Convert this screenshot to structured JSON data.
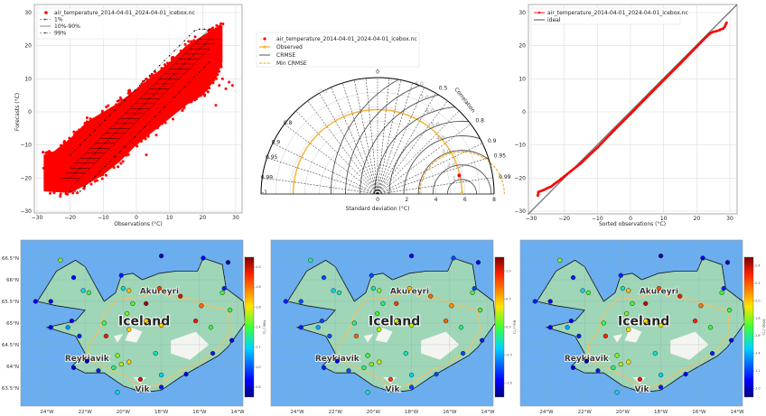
{
  "chart_data": [
    {
      "type": "scatter",
      "title": "",
      "xlabel": "Observations (°C)",
      "ylabel": "Forecasts (°C)",
      "xlim": [
        -31,
        32
      ],
      "ylim": [
        -31,
        32
      ],
      "xticks": [
        -30,
        -20,
        -10,
        0,
        10,
        20,
        30
      ],
      "yticks": [
        -30,
        -20,
        -10,
        0,
        10,
        20,
        30
      ],
      "grid": true,
      "legend_position": "top-left",
      "legend": [
        "air_temperature_2014-04-01_2024-04-01_icebox.nc",
        "1%",
        "10%-90%",
        "99%"
      ],
      "series_color": "#ff0000",
      "point_cloud_upper_edge": [
        [
          -28,
          -13
        ],
        [
          -25,
          -12
        ],
        [
          -20,
          -8
        ],
        [
          -15,
          -3
        ],
        [
          -10,
          0
        ],
        [
          -5,
          3
        ],
        [
          0,
          7
        ],
        [
          5,
          11
        ],
        [
          10,
          15
        ],
        [
          15,
          20
        ],
        [
          20,
          23
        ],
        [
          23,
          25
        ],
        [
          26,
          26
        ]
      ],
      "point_cloud_lower_edge": [
        [
          -28,
          -24
        ],
        [
          -20,
          -24.5
        ],
        [
          -15,
          -22
        ],
        [
          -10,
          -19
        ],
        [
          -5,
          -15
        ],
        [
          0,
          -10
        ],
        [
          5,
          -6
        ],
        [
          10,
          -2
        ],
        [
          15,
          2
        ],
        [
          20,
          5
        ],
        [
          24,
          10
        ],
        [
          26,
          15
        ]
      ],
      "outliers": [
        [
          25,
          8
        ],
        [
          26,
          10
        ],
        [
          27,
          7
        ],
        [
          28,
          9
        ],
        [
          29,
          8
        ],
        [
          24,
          2
        ],
        [
          -23,
          -25.5
        ],
        [
          -27,
          -13
        ],
        [
          -28,
          -17
        ],
        [
          6,
          -7
        ],
        [
          3,
          -13
        ]
      ],
      "quantile_bins_x": [
        -20,
        -18.5,
        -17,
        -15.5,
        -14,
        -12.5,
        -11,
        -9.5,
        -8,
        -6.5,
        -5,
        -3.5,
        -2,
        -0.5,
        1,
        2.5,
        4,
        5.5,
        7,
        8.5,
        10,
        11.5,
        13,
        14.5,
        16,
        17.5,
        19,
        20.5,
        22
      ],
      "q01_offset": -7,
      "q10_offset": -3,
      "q50_offset": 0,
      "q90_offset": 3,
      "q99_offset": 7
    },
    {
      "type": "taylor",
      "xlabel": "Standard deviation (°C)",
      "std_ticks": [
        0,
        2,
        4,
        6,
        8
      ],
      "std_max": 8,
      "correlation_label": "Correlation",
      "correlation_ticks": [
        "0",
        "0.5",
        "0.8",
        "0.9",
        "0.95",
        "0.99",
        "1"
      ],
      "correlation_values": [
        0,
        0.5,
        0.8,
        0.9,
        0.95,
        0.99,
        1
      ],
      "neg_correlation_values": [
        -0.5,
        -0.8,
        -0.9,
        -0.95,
        -0.99,
        -1
      ],
      "neg_correlation_ticks": [
        "0.5",
        "0.8",
        "0.9",
        "0.95",
        "0.99",
        "-1"
      ],
      "crmse_labels": [
        "1.0",
        "2.0",
        "3.0",
        "4.0",
        "5.0",
        "6.0",
        "7.0",
        "8.0",
        "9.0"
      ],
      "crmse_values": [
        1,
        2,
        3,
        4,
        5,
        6,
        7,
        8,
        9
      ],
      "observed_std": 5.8,
      "model_point": {
        "std": 5.75,
        "corr": 0.975
      },
      "min_crmse": 2.9,
      "legend": [
        "air_temperature_2014-04-01_2024-04-01_icebox.nc",
        "Observed",
        "CRMSE",
        "Min CRMSE"
      ],
      "colors": {
        "model": "#ff0000",
        "observed": "#f5b942",
        "crmse": "#555555",
        "min_crmse": "#f5a000"
      }
    },
    {
      "type": "line",
      "xlabel": "Sorted observations (°C)",
      "ylabel": "",
      "xlim": [
        -31,
        32
      ],
      "ylim": [
        -31,
        32
      ],
      "xticks": [
        -30,
        -20,
        -10,
        0,
        10,
        20,
        30
      ],
      "yticks": [
        -30,
        -20,
        -10,
        0,
        10,
        20,
        30
      ],
      "grid": true,
      "legend_position": "top-left",
      "legend": [
        "air_temperature_2014-04-01_2024-04-01_icebox.nc",
        "ideal"
      ],
      "series": [
        {
          "name": "air_temperature_2014-04-01_2024-04-01_icebox.nc",
          "color": "#ff0000",
          "x": [
            -28,
            -27.8,
            -27,
            -26,
            -25,
            -24,
            -23,
            -22,
            -21,
            -20,
            -18,
            -15,
            -10,
            -5,
            0,
            5,
            10,
            15,
            20,
            22,
            23,
            24,
            25,
            26,
            27,
            28,
            28.5,
            29
          ],
          "y": [
            -25.3,
            -24.2,
            -23.9,
            -23.5,
            -23,
            -22.6,
            -21.8,
            -21.1,
            -20.3,
            -19.5,
            -17.9,
            -15.5,
            -10.8,
            -5.6,
            -0.6,
            4.5,
            9.6,
            14.6,
            19.7,
            21.8,
            22.8,
            23.7,
            24.2,
            24.4,
            24.8,
            25.2,
            25.8,
            27
          ]
        },
        {
          "name": "ideal",
          "color": "#777777",
          "x": [
            -31,
            32
          ],
          "y": [
            -31,
            32
          ]
        }
      ]
    },
    {
      "type": "map",
      "colorbar_label": "MAE (°C)",
      "colorbar_ticks": [
        "0.8",
        "1.0",
        "1.2",
        "1.4",
        "1.6",
        "1.8",
        "2.0"
      ],
      "values": [
        0.55,
        0.12,
        0.35,
        0.5,
        0.12,
        0.12,
        0.12,
        0.12,
        0.28,
        0.15,
        0.5,
        0.15,
        0.38,
        0.7,
        0.5,
        0.55,
        0.85,
        0.97,
        0.92,
        0.8,
        0.9,
        0.5,
        0.05,
        0.12,
        0.05,
        0.15,
        0.5,
        0.12,
        0.5,
        0.12,
        0.15,
        0.68,
        0.68,
        0.68,
        0.9,
        0.55,
        0.4,
        0.68,
        0.58,
        0.45,
        0.08,
        0.05,
        0.15,
        0.92,
        0.35,
        0.12,
        0.15,
        0.35
      ]
    },
    {
      "type": "map",
      "colorbar_label": "Bias (°C)",
      "colorbar_ticks": [
        "-1.0",
        "-0.5",
        "0.0",
        "0.5",
        "1.0"
      ],
      "values": [
        0.45,
        0.2,
        0.35,
        0.4,
        0.15,
        0.2,
        0.2,
        0.15,
        0.3,
        0.2,
        0.45,
        0.2,
        0.4,
        0.55,
        0.45,
        0.5,
        0.7,
        0.85,
        0.8,
        0.75,
        0.8,
        0.5,
        0.1,
        0.2,
        0.1,
        0.2,
        0.5,
        0.2,
        0.45,
        0.15,
        0.2,
        0.6,
        0.6,
        0.6,
        0.8,
        0.5,
        0.4,
        0.6,
        0.55,
        0.45,
        0.15,
        0.1,
        0.2,
        0.85,
        0.35,
        0.2,
        0.2,
        0.4
      ]
    },
    {
      "type": "map",
      "colorbar_label": "RMSE (°C)",
      "colorbar_ticks": [
        "1.0",
        "1.2",
        "1.4",
        "1.6",
        "1.8",
        "2.0",
        "2.2",
        "2.4"
      ],
      "values": [
        0.55,
        0.15,
        0.35,
        0.5,
        0.15,
        0.12,
        0.12,
        0.12,
        0.3,
        0.15,
        0.5,
        0.15,
        0.4,
        0.7,
        0.5,
        0.55,
        0.82,
        0.95,
        0.9,
        0.78,
        0.88,
        0.5,
        0.05,
        0.12,
        0.05,
        0.15,
        0.5,
        0.12,
        0.5,
        0.12,
        0.15,
        0.66,
        0.66,
        0.66,
        0.88,
        0.55,
        0.4,
        0.66,
        0.58,
        0.45,
        0.08,
        0.05,
        0.15,
        0.9,
        0.35,
        0.12,
        0.15,
        0.35
      ]
    }
  ],
  "maps": {
    "country_label": "Iceland",
    "cities": [
      {
        "name": "Akureyri",
        "lon": -18.1,
        "lat": 65.68
      },
      {
        "name": "Reykjavik",
        "lon": -21.9,
        "lat": 64.13
      },
      {
        "name": "Vik",
        "lon": -19.0,
        "lat": 63.42
      }
    ],
    "lon_ticks": [
      "24°W",
      "22°W",
      "20°W",
      "18°W",
      "16°W",
      "14°W"
    ],
    "lon_tick_values": [
      -24,
      -22,
      -20,
      -18,
      -16,
      -14
    ],
    "lat_ticks": [
      "66.5°N",
      "66°N",
      "65.5°N",
      "65°N",
      "64.5°N",
      "64°N",
      "63.5°N"
    ],
    "lat_tick_values": [
      66.5,
      66,
      65.5,
      65,
      64.5,
      64,
      63.5
    ],
    "stations": [
      [
        -23.3,
        66.45
      ],
      [
        -22.6,
        66.05
      ],
      [
        -22.1,
        65.75
      ],
      [
        -21.8,
        65.7
      ],
      [
        -24.6,
        65.5
      ],
      [
        -23.8,
        65.5
      ],
      [
        -22.7,
        65.05
      ],
      [
        -23.8,
        64.9
      ],
      [
        -22.9,
        64.9
      ],
      [
        -22.3,
        64.7
      ],
      [
        -21.0,
        65.0
      ],
      [
        -20.1,
        66.1
      ],
      [
        -20.0,
        65.8
      ],
      [
        -19.7,
        65.75
      ],
      [
        -19.5,
        65.45
      ],
      [
        -19.8,
        65.22
      ],
      [
        -18.1,
        65.8
      ],
      [
        -18.8,
        65.45
      ],
      [
        -17.0,
        65.62
      ],
      [
        -15.9,
        65.4
      ],
      [
        -16.2,
        65.05
      ],
      [
        -14.8,
        65.7
      ],
      [
        -14.5,
        66.4
      ],
      [
        -15.8,
        66.5
      ],
      [
        -18.0,
        66.55
      ],
      [
        -14.7,
        65.8
      ],
      [
        -14.4,
        65.3
      ],
      [
        -13.5,
        64.95
      ],
      [
        -15.4,
        64.9
      ],
      [
        -14.3,
        64.6
      ],
      [
        -15.3,
        64.3
      ],
      [
        -18.8,
        65.05
      ],
      [
        -18.0,
        64.95
      ],
      [
        -19.7,
        64.85
      ],
      [
        -20.9,
        64.7
      ],
      [
        -20.3,
        64.25
      ],
      [
        -18.3,
        64.3
      ],
      [
        -19.7,
        64.1
      ],
      [
        -20.1,
        64.05
      ],
      [
        -20.5,
        63.97
      ],
      [
        -22.6,
        63.97
      ],
      [
        -21.9,
        64.12
      ],
      [
        -21.3,
        63.9
      ],
      [
        -19.1,
        63.7
      ],
      [
        -18.0,
        63.8
      ],
      [
        -16.7,
        63.82
      ],
      [
        -18.0,
        63.52
      ],
      [
        -20.3,
        63.4
      ]
    ]
  }
}
